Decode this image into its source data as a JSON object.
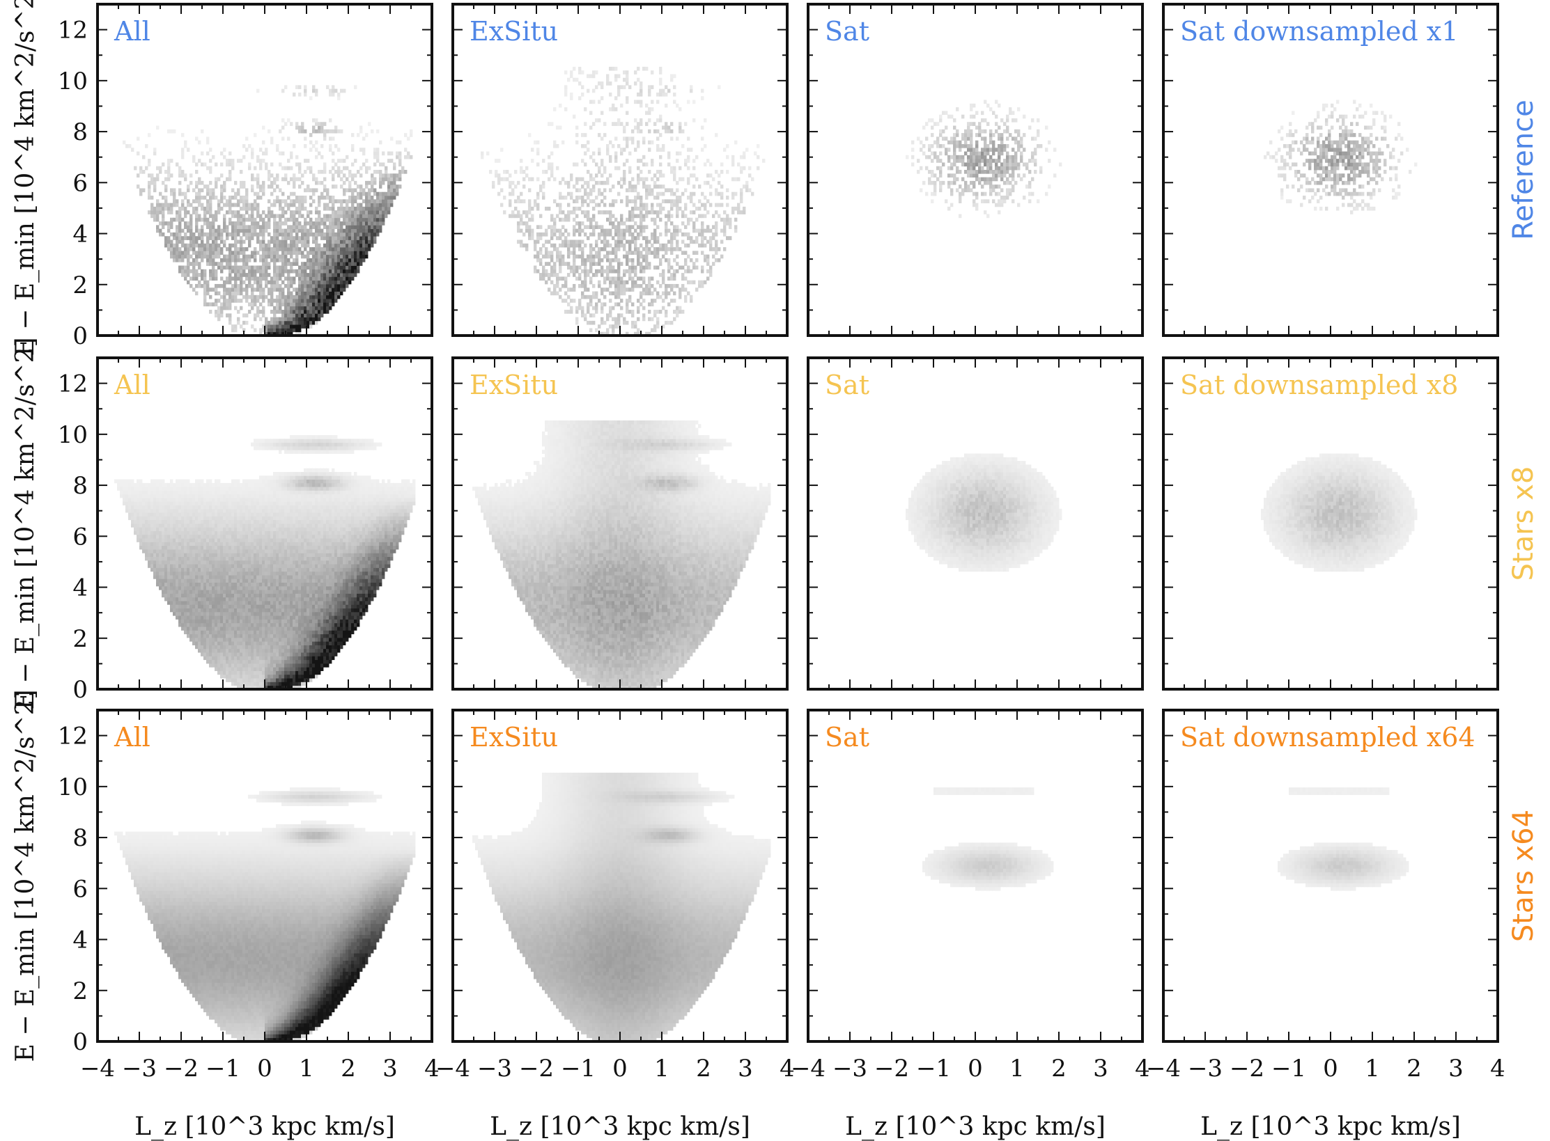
{
  "chart_data": {
    "type": "heatmap",
    "description_axes": {
      "xlabel": "L_z [10^3 kpc km/s]",
      "ylabel": "E − E_min [10^4 km^2/s^2]",
      "xlim": [
        -4,
        4
      ],
      "ylim": [
        0,
        13
      ],
      "xticks": [
        "−4",
        "−3",
        "−2",
        "−1",
        "0",
        "1",
        "2",
        "3",
        "4"
      ],
      "yticks": [
        "0",
        "2",
        "4",
        "6",
        "8",
        "10",
        "12"
      ]
    },
    "columns": [
      "All",
      "ExSitu",
      "Sat",
      "Sat downsampled"
    ],
    "rows": [
      {
        "name": "Reference",
        "color": "#4f86e6",
        "panels": [
          {
            "label": "All",
            "kind": "all",
            "density": 1.0,
            "noise": 0.55,
            "speckle": true
          },
          {
            "label": "ExSitu",
            "kind": "exsitu",
            "density": 0.55,
            "noise": 0.6,
            "speckle": true
          },
          {
            "label": "Sat",
            "kind": "sat",
            "density": 0.35,
            "noise": 0.7,
            "speckle": true
          },
          {
            "label": "Sat downsampled x1",
            "kind": "sat",
            "density": 0.35,
            "noise": 0.7,
            "speckle": true
          }
        ]
      },
      {
        "name": "Stars x8",
        "color": "#f5c451",
        "panels": [
          {
            "label": "All",
            "kind": "all",
            "density": 1.0,
            "noise": 0.3,
            "speckle": false
          },
          {
            "label": "ExSitu",
            "kind": "exsitu",
            "density": 0.7,
            "noise": 0.35,
            "speckle": false
          },
          {
            "label": "Sat",
            "kind": "sat",
            "density": 0.22,
            "noise": 0.5,
            "speckle": false
          },
          {
            "label": "Sat downsampled x8",
            "kind": "sat",
            "density": 0.22,
            "noise": 0.5,
            "speckle": false
          }
        ]
      },
      {
        "name": "Stars x64",
        "color": "#f58a1f",
        "panels": [
          {
            "label": "All",
            "kind": "all",
            "density": 1.0,
            "noise": 0.12,
            "speckle": false
          },
          {
            "label": "ExSitu",
            "kind": "exsitu",
            "density": 0.75,
            "noise": 0.12,
            "speckle": false
          },
          {
            "label": "Sat",
            "kind": "satflat",
            "density": 0.18,
            "noise": 0.25,
            "speckle": false
          },
          {
            "label": "Sat downsampled x64",
            "kind": "satflat",
            "density": 0.18,
            "noise": 0.25,
            "speckle": false
          }
        ]
      }
    ]
  }
}
